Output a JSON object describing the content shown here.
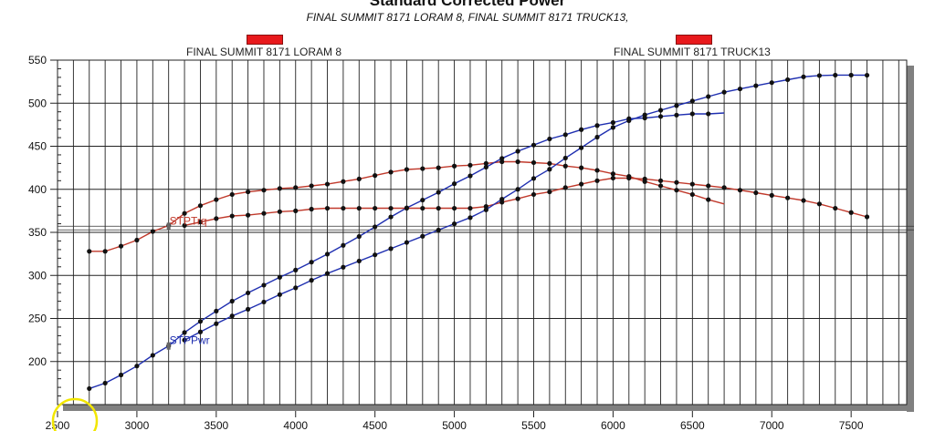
{
  "chart_data": {
    "type": "line",
    "title": "Standard Corrected Power",
    "subtitle": "FINAL SUMMIT 8171 LORAM 8, FINAL SUMMIT 8171 TRUCK13,",
    "legend": {
      "placement": "top",
      "entries": [
        {
          "name": "FINAL SUMMIT 8171 LORAM 8",
          "color": "#e8191c"
        },
        {
          "name": "FINAL SUMMIT 8171 TRUCK13",
          "color": "#e8191c"
        }
      ]
    },
    "xlim": [
      2500,
      7850
    ],
    "ylim": [
      150,
      550
    ],
    "x_ticks": [
      2500,
      3000,
      3500,
      4000,
      4500,
      5000,
      5500,
      6000,
      6500,
      7000,
      7500
    ],
    "y_ticks": [
      200,
      250,
      300,
      350,
      400,
      450,
      500,
      550
    ],
    "grid": true,
    "vertical_grid_step": 100,
    "cursor_y": 355,
    "annotations": [
      {
        "text": "STPTrq",
        "x": 3200,
        "y": 357,
        "color": "#c0392b"
      },
      {
        "text": "STPPwr",
        "x": 3200,
        "y": 218,
        "color": "#1f2fb0"
      }
    ],
    "colors": {
      "torque": "#c0392b",
      "power": "#1f2fb0",
      "marker": "#111111"
    },
    "series": [
      {
        "name": "FINAL SUMMIT 8171 LORAM 8",
        "rpm": [
          2700,
          2800,
          2900,
          3000,
          3100,
          3200,
          3300,
          3400,
          3500,
          3600,
          3700,
          3800,
          3900,
          4000,
          4100,
          4200,
          4300,
          4400,
          4500,
          4600,
          4700,
          4800,
          4900,
          5000,
          5100,
          5200,
          5300,
          5400,
          5500,
          5600,
          5700,
          5800,
          5900,
          6000,
          6100,
          6200,
          6300,
          6400,
          6500,
          6600,
          6700
        ],
        "STPTrq": [
          328,
          328,
          334,
          341,
          351,
          358,
          372,
          381,
          388,
          394,
          397,
          399,
          401,
          402,
          404,
          406,
          409,
          412,
          416,
          420,
          423,
          424,
          425,
          427,
          428,
          430,
          432,
          432,
          431,
          430,
          427,
          425,
          422,
          418,
          415,
          409,
          404,
          399,
          394,
          388,
          383
        ],
        "STPPwr": [
          168.6,
          174.9,
          184.4,
          194.8,
          207.2,
          218.1,
          233.7,
          246.6,
          258.6,
          270.1,
          279.7,
          288.7,
          297.8,
          306.2,
          315.4,
          324.7,
          334.9,
          345.2,
          356.4,
          367.9,
          378.5,
          387.5,
          396.5,
          406.5,
          415.6,
          425.7,
          435.9,
          444.2,
          451.4,
          458.5,
          463.4,
          469.3,
          474.1,
          477.5,
          482.0,
          482.8,
          484.6,
          486.2,
          487.6,
          487.6,
          488.6
        ]
      },
      {
        "name": "FINAL SUMMIT 8171 TRUCK13",
        "rpm": [
          3300,
          3400,
          3500,
          3600,
          3700,
          3800,
          3900,
          4000,
          4100,
          4200,
          4300,
          4400,
          4500,
          4600,
          4700,
          4800,
          4900,
          5000,
          5100,
          5200,
          5300,
          5400,
          5500,
          5600,
          5700,
          5800,
          5900,
          6000,
          6100,
          6200,
          6300,
          6400,
          6500,
          6600,
          6700,
          6800,
          6900,
          7000,
          7100,
          7200,
          7300,
          7400,
          7500,
          7600
        ],
        "STPTrq": [
          358,
          362,
          366,
          369,
          370,
          372,
          374,
          375,
          377,
          378,
          378,
          378,
          378,
          378,
          378,
          378,
          378,
          378,
          378,
          380,
          385,
          389,
          394,
          397,
          402,
          406,
          410,
          413,
          413,
          412,
          410,
          408,
          406,
          404,
          402,
          399,
          396,
          393,
          390,
          387,
          383,
          378,
          373,
          368
        ],
        "STPPwr": [
          224.9,
          234.4,
          243.9,
          252.9,
          260.7,
          269.1,
          277.7,
          285.6,
          294.3,
          302.3,
          309.5,
          316.7,
          323.9,
          331.1,
          338.3,
          345.5,
          352.7,
          359.9,
          367.1,
          376.2,
          388.5,
          400.0,
          412.6,
          423.3,
          436.3,
          448.3,
          460.6,
          471.8,
          479.7,
          486.4,
          491.8,
          497.2,
          502.5,
          507.7,
          512.8,
          516.6,
          520.3,
          523.9,
          527.3,
          530.6,
          532.1,
          532.6,
          532.6,
          532.5
        ]
      }
    ]
  }
}
